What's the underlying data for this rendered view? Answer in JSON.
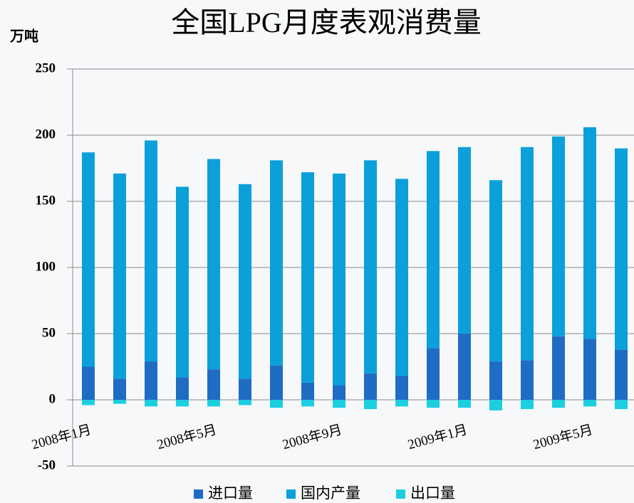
{
  "chart_data": {
    "type": "stacked_bar",
    "title": "全国LPG月度表观消费量",
    "y_label": "万吨",
    "categories": [
      "2008年1月",
      null,
      null,
      null,
      "2008年5月",
      null,
      null,
      null,
      "2008年9月",
      null,
      null,
      null,
      "2009年1月",
      null,
      null,
      null,
      "2009年5月",
      null
    ],
    "series": [
      {
        "name": "进口量",
        "color": "#1f6cc4",
        "values": [
          25,
          16,
          29,
          17,
          23,
          16,
          26,
          13,
          11,
          20,
          18,
          39,
          50,
          29,
          30,
          48,
          46,
          38
        ]
      },
      {
        "name": "国内产量",
        "color": "#0ba0da",
        "values": [
          162,
          155,
          167,
          144,
          159,
          147,
          155,
          159,
          160,
          161,
          149,
          149,
          141,
          137,
          161,
          151,
          160,
          152
        ]
      },
      {
        "name": "出口量",
        "color": "#1ccfe0",
        "values": [
          -4,
          -3,
          -5,
          -5,
          -5,
          -4,
          -6,
          -5,
          -6,
          -7,
          -5,
          -6,
          -6,
          -8,
          -7,
          -6,
          -5,
          -7
        ]
      }
    ],
    "ylim": [
      -50,
      250
    ],
    "yticks": [
      -50,
      0,
      50,
      100,
      150,
      200,
      250
    ],
    "grid": true
  }
}
